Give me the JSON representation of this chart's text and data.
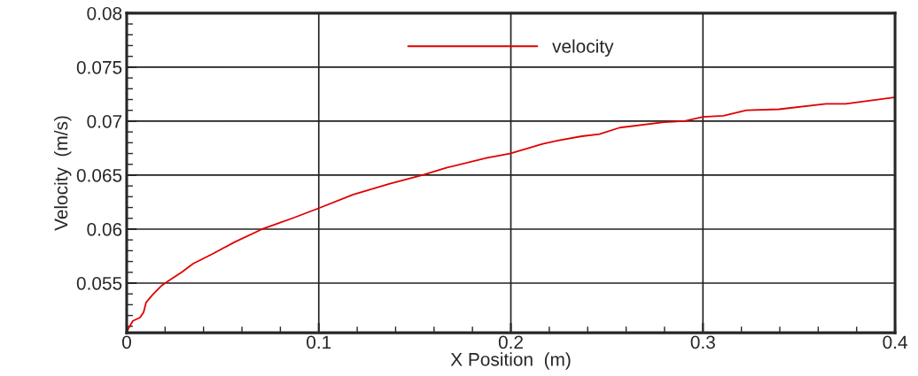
{
  "chart_data": {
    "type": "line",
    "xlabel": "X Position  (m)",
    "ylabel": "Velocity  (m/s)",
    "xlim": [
      0,
      0.4
    ],
    "xticks": [
      0,
      0.1,
      0.2,
      0.3,
      0.4
    ],
    "ylim": [
      0.0504,
      0.08
    ],
    "yticks": [
      0.055,
      0.06,
      0.065,
      0.07,
      0.075,
      0.08
    ],
    "grid": true,
    "legend": "top",
    "marker": "none",
    "line_style": "solid",
    "series": [
      {
        "name": "velocity",
        "color": "#e00000",
        "x": [
          0,
          0.0009,
          0.0032,
          0.0069,
          0.0088,
          0.0101,
          0.0134,
          0.0161,
          0.0184,
          0.0226,
          0.0286,
          0.0346,
          0.0447,
          0.0562,
          0.0705,
          0.0783,
          0.0862,
          0.0995,
          0.118,
          0.137,
          0.154,
          0.1668,
          0.1876,
          0.1995,
          0.2166,
          0.2244,
          0.2369,
          0.2461,
          0.2567,
          0.2797,
          0.2903,
          0.3,
          0.3106,
          0.3226,
          0.3396,
          0.364,
          0.3742,
          0.3995
        ],
        "values": [
          0.0504,
          0.0508,
          0.0515,
          0.0518,
          0.0523,
          0.0532,
          0.0539,
          0.0544,
          0.0548,
          0.0553,
          0.056,
          0.0568,
          0.0577,
          0.0588,
          0.06,
          0.0605,
          0.061,
          0.0619,
          0.0632,
          0.0642,
          0.065,
          0.0657,
          0.0666,
          0.067,
          0.0679,
          0.0682,
          0.0686,
          0.0688,
          0.0694,
          0.0699,
          0.07,
          0.0704,
          0.0705,
          0.071,
          0.0711,
          0.0716,
          0.0716,
          0.0722
        ]
      }
    ]
  }
}
